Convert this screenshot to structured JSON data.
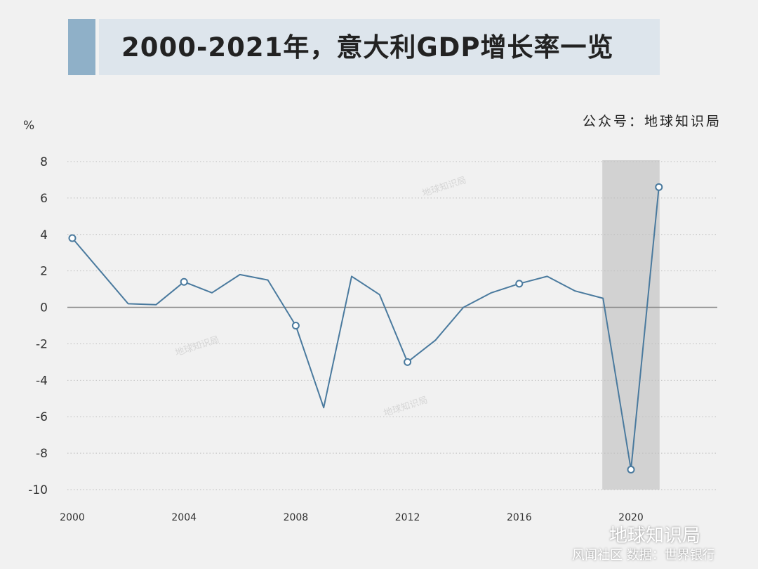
{
  "header": {
    "title": "2000-2021年，意大利GDP增长率一览",
    "source": "公众号：地球知识局"
  },
  "watermarks": [
    "地球知识局",
    "地球知识局",
    "地球知识局"
  ],
  "branding": {
    "name": "地球知识局",
    "sub": "风闻社区   数据：世界银行"
  },
  "colors": {
    "line": "#4a7a9e",
    "highlight": "#d2d2d2",
    "zero_line": "#8a8a8a",
    "grid": "#bdbdbd"
  },
  "chart_data": {
    "type": "line",
    "title": "2000-2021年，意大利GDP增长率一览",
    "ylabel": "%",
    "xlabel": "",
    "ylim": [
      -10,
      8
    ],
    "yticks": [
      "8",
      "6",
      "4",
      "2",
      "0",
      "-2",
      "-4",
      "-6",
      "-8",
      "-10"
    ],
    "xticks": [
      "2000",
      "2004",
      "2008",
      "2012",
      "2016",
      "2020"
    ],
    "grid": "horizontal dotted",
    "highlight_range": [
      2019,
      2021
    ],
    "marked_years": [
      2000,
      2004,
      2008,
      2012,
      2016,
      2020,
      2021
    ],
    "series": [
      {
        "name": "意大利GDP增长率",
        "x": [
          2000,
          2001,
          2002,
          2003,
          2004,
          2005,
          2006,
          2007,
          2008,
          2009,
          2010,
          2011,
          2012,
          2013,
          2014,
          2015,
          2016,
          2017,
          2018,
          2019,
          2020,
          2021
        ],
        "values": [
          3.8,
          2.0,
          0.2,
          0.15,
          1.4,
          0.8,
          1.8,
          1.5,
          -1.0,
          -5.5,
          1.7,
          0.7,
          -3.0,
          -1.8,
          0.0,
          0.8,
          1.3,
          1.7,
          0.9,
          0.5,
          -8.9,
          6.6
        ]
      }
    ]
  }
}
